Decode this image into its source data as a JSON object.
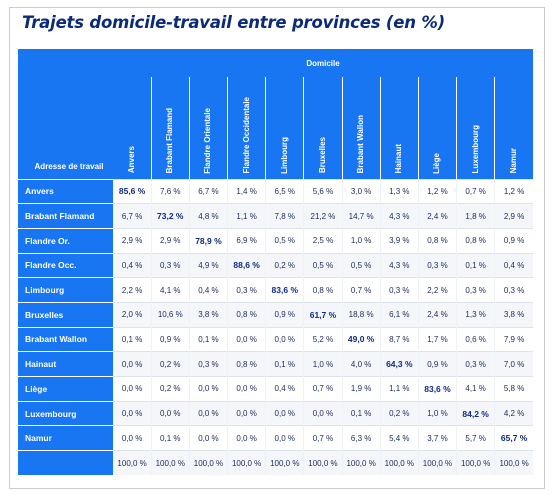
{
  "title": "Trajets domicile-travail entre provinces (en %)",
  "header": {
    "domicile_label": "Domicile",
    "corner_label": "Adresse de travail",
    "columns": [
      "Anvers",
      "Brabant Flamand",
      "Flandre Orientale",
      "Flandre Occidentale",
      "Limbourg",
      "Bruxelles",
      "Brabant Wallon",
      "Hainaut",
      "Liège",
      "Luxembourg",
      "Namur"
    ]
  },
  "rows": [
    {
      "label": "Anvers",
      "values": [
        "85,6 %",
        "7,6 %",
        "6,7 %",
        "1,4 %",
        "6,5 %",
        "5,6 %",
        "3,0 %",
        "1,3 %",
        "1,2 %",
        "0,7 %",
        "1,2 %"
      ]
    },
    {
      "label": "Brabant Flamand",
      "values": [
        "6,7 %",
        "73,2 %",
        "4,8 %",
        "1,1 %",
        "7,8 %",
        "21,2 %",
        "14,7 %",
        "4,3 %",
        "2,4 %",
        "1,8 %",
        "2,9 %"
      ]
    },
    {
      "label": "Flandre Or.",
      "values": [
        "2,9 %",
        "2,9 %",
        "78,9 %",
        "6,9 %",
        "0,5 %",
        "2,5 %",
        "1,0 %",
        "3,9 %",
        "0,8 %",
        "0,8 %",
        "0,9 %"
      ]
    },
    {
      "label": "Flandre Occ.",
      "values": [
        "0,4 %",
        "0,3 %",
        "4,9 %",
        "88,6 %",
        "0,2 %",
        "0,5 %",
        "0,5 %",
        "4,3 %",
        "0,3 %",
        "0,1 %",
        "0,4 %"
      ]
    },
    {
      "label": "Limbourg",
      "values": [
        "2,2 %",
        "4,1 %",
        "0,4 %",
        "0,3 %",
        "83,6 %",
        "0,8 %",
        "0,7 %",
        "0,3 %",
        "2,2 %",
        "0,3 %",
        "0,3 %"
      ]
    },
    {
      "label": "Bruxelles",
      "values": [
        "2,0 %",
        "10,6 %",
        "3,8 %",
        "0,8 %",
        "0,9 %",
        "61,7 %",
        "18,8 %",
        "6,1 %",
        "2,4 %",
        "1,3 %",
        "3,8 %"
      ]
    },
    {
      "label": "Brabant Wallon",
      "values": [
        "0,1 %",
        "0,9 %",
        "0,1 %",
        "0,0 %",
        "0,0 %",
        "5,2 %",
        "49,0 %",
        "8,7 %",
        "1,7 %",
        "0,6 %",
        "7,9 %"
      ]
    },
    {
      "label": "Hainaut",
      "values": [
        "0,0 %",
        "0,2 %",
        "0,3 %",
        "0,8 %",
        "0,1 %",
        "1,0 %",
        "4,0 %",
        "64,3 %",
        "0,9 %",
        "0,3 %",
        "7,0 %"
      ]
    },
    {
      "label": "Liège",
      "values": [
        "0,0 %",
        "0,2 %",
        "0,0 %",
        "0,0 %",
        "0,4 %",
        "0,7 %",
        "1,9 %",
        "1,1 %",
        "83,6 %",
        "4,1 %",
        "5,8 %"
      ]
    },
    {
      "label": "Luxembourg",
      "values": [
        "0,0 %",
        "0,0 %",
        "0,0 %",
        "0,0 %",
        "0,0 %",
        "0,0 %",
        "0,1 %",
        "0,2 %",
        "1,0 %",
        "84,2 %",
        "4,2 %"
      ]
    },
    {
      "label": "Namur",
      "values": [
        "0,0 %",
        "0,1 %",
        "0,0 %",
        "0,0 %",
        "0,0 %",
        "0,7 %",
        "6,3 %",
        "5,4 %",
        "3,7 %",
        "5,7 %",
        "65,7 %"
      ]
    }
  ],
  "totals": {
    "label": "",
    "values": [
      "100,0 %",
      "100,0 %",
      "100,0 %",
      "100,0 %",
      "100,0 %",
      "100,0 %",
      "100,0 %",
      "100,0 %",
      "100,0 %",
      "100,0 %",
      "100,0 %"
    ]
  },
  "colors": {
    "accent": "#1976f2",
    "title": "#0b2a78",
    "diagonal_text": "#0e2a82",
    "cell_text": "#1b2b58"
  }
}
